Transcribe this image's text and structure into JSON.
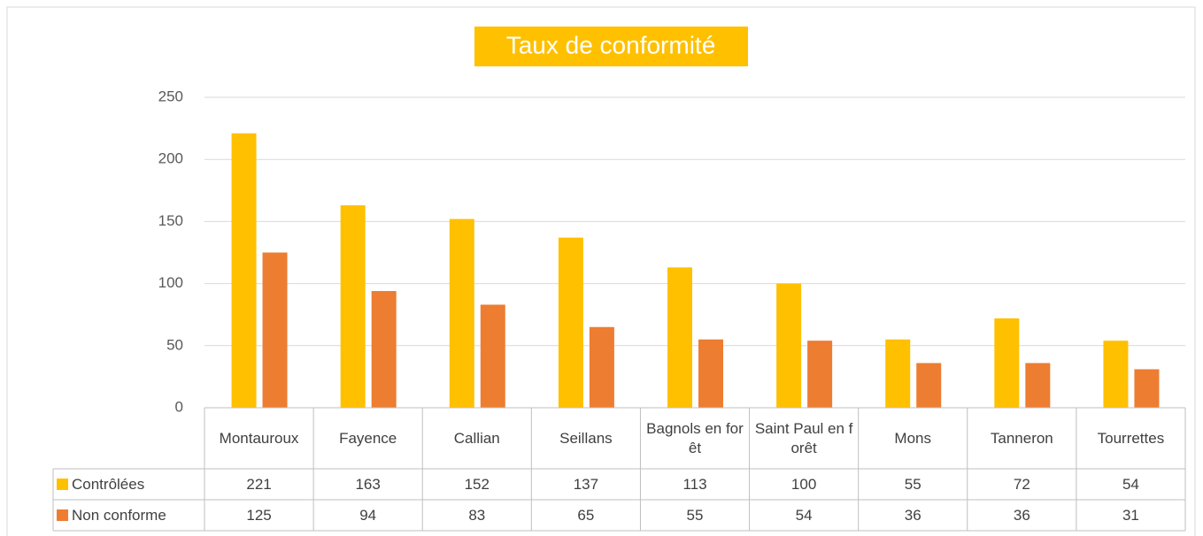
{
  "chart_data": {
    "type": "bar",
    "title": "Taux de conformité",
    "categories": [
      "Montauroux",
      "Fayence",
      "Callian",
      "Seillans",
      "Bagnols en forêt",
      "Saint Paul en forêt",
      "Mons",
      "Tanneron",
      "Tourrettes"
    ],
    "series": [
      {
        "name": "Contrôlées",
        "color": "#FFC000",
        "values": [
          221,
          163,
          152,
          137,
          113,
          100,
          55,
          72,
          54
        ]
      },
      {
        "name": "Non conforme",
        "color": "#ED7D31",
        "values": [
          125,
          94,
          83,
          65,
          55,
          54,
          36,
          36,
          31
        ]
      }
    ],
    "ylim": [
      0,
      250
    ],
    "yticks": [
      0,
      50,
      100,
      150,
      200,
      250
    ],
    "grid": true,
    "data_table": true
  }
}
